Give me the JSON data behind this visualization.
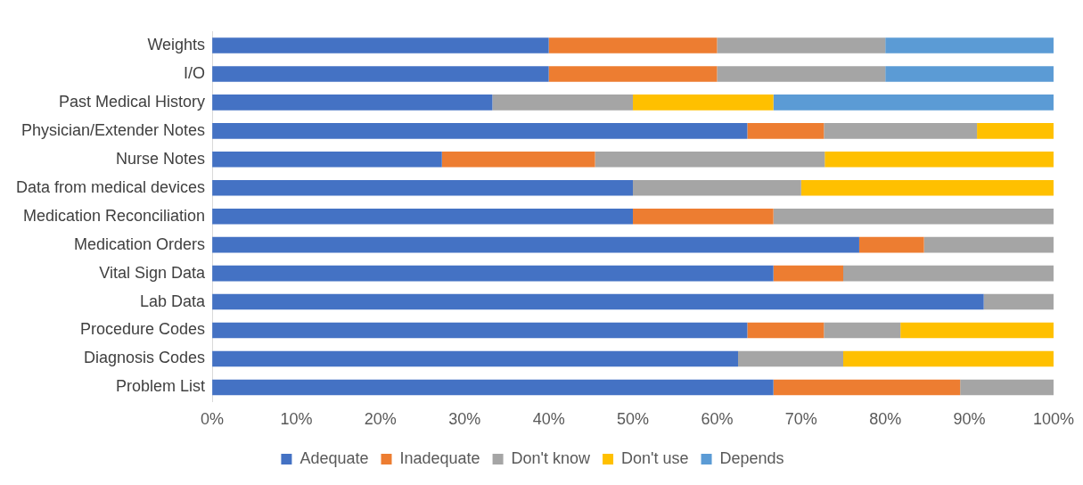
{
  "chart_data": {
    "type": "bar",
    "orientation": "horizontal",
    "stacked": true,
    "categories": [
      "Weights",
      "I/O",
      "Past Medical History",
      "Physician/Extender Notes",
      "Nurse Notes",
      "Data from medical devices",
      "Medication Reconciliation",
      "Medication Orders",
      "Vital Sign Data",
      "Lab Data",
      "Procedure Codes",
      "Diagnosis Codes",
      "Problem List"
    ],
    "series": [
      {
        "name": "Adequate",
        "color": "#4472c4",
        "values": [
          40,
          40,
          33.3,
          63.6,
          27.3,
          50,
          50,
          76.9,
          66.7,
          91.7,
          63.6,
          62.5,
          66.7
        ]
      },
      {
        "name": "Inadequate",
        "color": "#ed7d31",
        "values": [
          20,
          20,
          0,
          9.1,
          18.2,
          0,
          16.7,
          7.7,
          8.3,
          0,
          9.1,
          0,
          22.2
        ]
      },
      {
        "name": "Don't know",
        "color": "#a5a5a5",
        "values": [
          20,
          20,
          16.7,
          18.2,
          27.3,
          20,
          33.3,
          15.4,
          25,
          8.3,
          9.1,
          12.5,
          11.1
        ]
      },
      {
        "name": "Don't use",
        "color": "#ffc000",
        "values": [
          0,
          0,
          16.7,
          9.1,
          27.2,
          30,
          0,
          0,
          0,
          0,
          18.2,
          25,
          0
        ]
      },
      {
        "name": "Depends",
        "color": "#5b9bd5",
        "values": [
          20,
          20,
          33.3,
          0,
          0,
          0,
          0,
          0,
          0,
          0,
          0,
          0,
          0
        ]
      }
    ],
    "xlim": [
      0,
      100
    ],
    "xticks": [
      {
        "value": 0,
        "label": "0%"
      },
      {
        "value": 10,
        "label": "10%"
      },
      {
        "value": 20,
        "label": "20%"
      },
      {
        "value": 30,
        "label": "30%"
      },
      {
        "value": 40,
        "label": "40%"
      },
      {
        "value": 50,
        "label": "50%"
      },
      {
        "value": 60,
        "label": "60%"
      },
      {
        "value": 70,
        "label": "70%"
      },
      {
        "value": 80,
        "label": "80%"
      },
      {
        "value": 90,
        "label": "90%"
      },
      {
        "value": 100,
        "label": "100%"
      }
    ],
    "grid": false,
    "legend": "bottom"
  }
}
